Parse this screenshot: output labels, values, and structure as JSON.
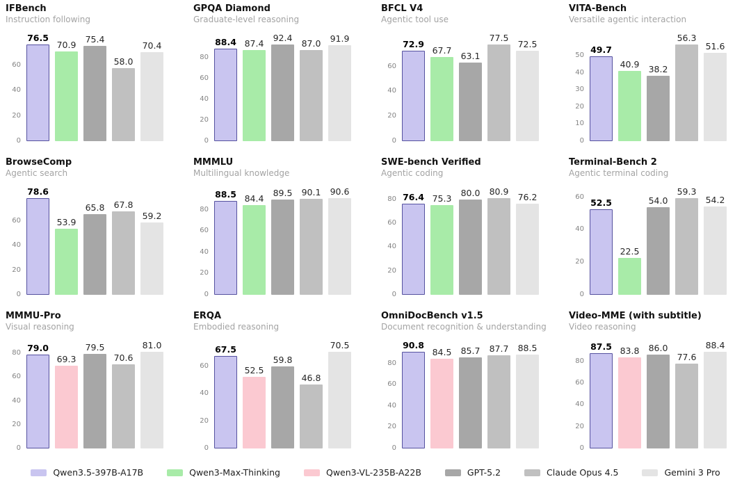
{
  "page": {
    "background": "#ffffff",
    "kind": "benchmark comparison figure, 12 bar charts in a 4x3 grid with shared legend"
  },
  "models": [
    {
      "id": "qwen35",
      "label": "Qwen3.5-397B-A17B",
      "fill": "#c9c5f0",
      "border": "#55519f"
    },
    {
      "id": "qwen3max",
      "label": "Qwen3-Max-Thinking",
      "fill": "#a8eba8",
      "border": ""
    },
    {
      "id": "qwen3vl",
      "label": "Qwen3-VL-235B-A22B",
      "fill": "#fbc9d1",
      "border": ""
    },
    {
      "id": "gpt52",
      "label": "GPT-5.2",
      "fill": "#a7a7a7",
      "border": ""
    },
    {
      "id": "claude",
      "label": "Claude Opus 4.5",
      "fill": "#c0c0c0",
      "border": ""
    },
    {
      "id": "gemini",
      "label": "Gemini 3 Pro",
      "fill": "#e4e4e4",
      "border": ""
    }
  ],
  "chart_data": [
    {
      "type": "bar",
      "title": "IFBench",
      "subtitle": "Instruction following",
      "model_ids": [
        "qwen35",
        "qwen3max",
        "gpt52",
        "claude",
        "gemini"
      ],
      "values": [
        76.5,
        70.9,
        75.4,
        58.0,
        70.4
      ],
      "yticks": [
        0,
        20,
        40,
        60
      ],
      "ylim": [
        0,
        80.5
      ],
      "grid": false,
      "xlabel": "",
      "ylabel": ""
    },
    {
      "type": "bar",
      "title": "GPQA Diamond",
      "subtitle": "Graduate-level reasoning",
      "model_ids": [
        "qwen35",
        "qwen3max",
        "gpt52",
        "claude",
        "gemini"
      ],
      "values": [
        88.4,
        87.4,
        92.4,
        87.0,
        91.9
      ],
      "yticks": [
        0,
        20,
        40,
        60,
        80
      ],
      "ylim": [
        0,
        97.3
      ],
      "grid": false,
      "xlabel": "",
      "ylabel": ""
    },
    {
      "type": "bar",
      "title": "BFCL V4",
      "subtitle": "Agentic tool use",
      "model_ids": [
        "qwen35",
        "qwen3max",
        "gpt52",
        "claude",
        "gemini"
      ],
      "values": [
        72.9,
        67.7,
        63.1,
        77.5,
        72.5
      ],
      "yticks": [
        0,
        20,
        40,
        60
      ],
      "ylim": [
        0,
        81.6
      ],
      "grid": false,
      "xlabel": "",
      "ylabel": ""
    },
    {
      "type": "bar",
      "title": "VITA-Bench",
      "subtitle": "Versatile agentic interaction",
      "model_ids": [
        "qwen35",
        "qwen3max",
        "gpt52",
        "claude",
        "gemini"
      ],
      "values": [
        49.7,
        40.9,
        38.2,
        56.3,
        51.6
      ],
      "yticks": [
        0,
        10,
        20,
        30,
        40,
        50
      ],
      "ylim": [
        0,
        59.3
      ],
      "grid": false,
      "xlabel": "",
      "ylabel": ""
    },
    {
      "type": "bar",
      "title": "BrowseComp",
      "subtitle": "Agentic search",
      "model_ids": [
        "qwen35",
        "qwen3max",
        "gpt52",
        "claude",
        "gemini"
      ],
      "values": [
        78.6,
        53.9,
        65.8,
        67.8,
        59.2
      ],
      "yticks": [
        0,
        20,
        40,
        60
      ],
      "ylim": [
        0,
        82.7
      ],
      "grid": false,
      "xlabel": "",
      "ylabel": ""
    },
    {
      "type": "bar",
      "title": "MMMLU",
      "subtitle": "Multilingual knowledge",
      "model_ids": [
        "qwen35",
        "qwen3max",
        "gpt52",
        "claude",
        "gemini"
      ],
      "values": [
        88.5,
        84.4,
        89.5,
        90.1,
        90.6
      ],
      "yticks": [
        0,
        20,
        40,
        60,
        80
      ],
      "ylim": [
        0,
        95.4
      ],
      "grid": false,
      "xlabel": "",
      "ylabel": ""
    },
    {
      "type": "bar",
      "title": "SWE-bench Verified",
      "subtitle": "Agentic coding",
      "model_ids": [
        "qwen35",
        "qwen3max",
        "gpt52",
        "claude",
        "gemini"
      ],
      "values": [
        76.4,
        75.3,
        80.0,
        80.9,
        76.2
      ],
      "yticks": [
        0,
        20,
        40,
        60,
        80
      ],
      "ylim": [
        0,
        85.2
      ],
      "grid": false,
      "xlabel": "",
      "ylabel": ""
    },
    {
      "type": "bar",
      "title": "Terminal-Bench 2",
      "subtitle": "Agentic terminal coding",
      "model_ids": [
        "qwen35",
        "qwen3max",
        "gpt52",
        "claude",
        "gemini"
      ],
      "values": [
        52.5,
        22.5,
        54.0,
        59.3,
        54.2
      ],
      "yticks": [
        0,
        20,
        40,
        60
      ],
      "ylim": [
        0,
        62.4
      ],
      "grid": false,
      "xlabel": "",
      "ylabel": ""
    },
    {
      "type": "bar",
      "title": "MMMU-Pro",
      "subtitle": "Visual reasoning",
      "model_ids": [
        "qwen35",
        "qwen3vl",
        "gpt52",
        "claude",
        "gemini"
      ],
      "values": [
        79.0,
        69.3,
        79.5,
        70.6,
        81.0
      ],
      "yticks": [
        0,
        20,
        40,
        60,
        80
      ],
      "ylim": [
        0,
        85.3
      ],
      "grid": false,
      "xlabel": "",
      "ylabel": ""
    },
    {
      "type": "bar",
      "title": "ERQA",
      "subtitle": "Embodied reasoning",
      "model_ids": [
        "qwen35",
        "qwen3vl",
        "gpt52",
        "claude",
        "gemini"
      ],
      "values": [
        67.5,
        52.5,
        59.8,
        46.8,
        70.5
      ],
      "yticks": [
        0,
        20,
        40,
        60
      ],
      "ylim": [
        0,
        74.2
      ],
      "grid": false,
      "xlabel": "",
      "ylabel": ""
    },
    {
      "type": "bar",
      "title": "OmniDocBench v1.5",
      "subtitle": "Document recognition & understanding",
      "model_ids": [
        "qwen35",
        "qwen3vl",
        "gpt52",
        "claude",
        "gemini"
      ],
      "values": [
        90.8,
        84.5,
        85.7,
        87.7,
        88.5
      ],
      "yticks": [
        0,
        20,
        40,
        60,
        80
      ],
      "ylim": [
        0,
        95.6
      ],
      "grid": false,
      "xlabel": "",
      "ylabel": ""
    },
    {
      "type": "bar",
      "title": "Video-MME (with subtitle)",
      "subtitle": "Video reasoning",
      "model_ids": [
        "qwen35",
        "qwen3vl",
        "gpt52",
        "claude",
        "gemini"
      ],
      "values": [
        87.5,
        83.8,
        86.0,
        77.6,
        88.4
      ],
      "yticks": [
        0,
        20,
        40,
        60,
        80
      ],
      "ylim": [
        0,
        93.1
      ],
      "grid": false,
      "xlabel": "",
      "ylabel": ""
    }
  ],
  "legend": {
    "position": "bottom-center",
    "entries": [
      "Qwen3.5-397B-A17B",
      "Qwen3-Max-Thinking",
      "Qwen3-VL-235B-A22B",
      "GPT-5.2",
      "Claude Opus 4.5",
      "Gemini 3 Pro"
    ]
  },
  "style": {
    "title_color": "#111111",
    "subtitle_color": "#a3a3a3",
    "tick_color": "#848484",
    "value_label_color": "#262626",
    "primary_value_label_color": "#000000"
  }
}
